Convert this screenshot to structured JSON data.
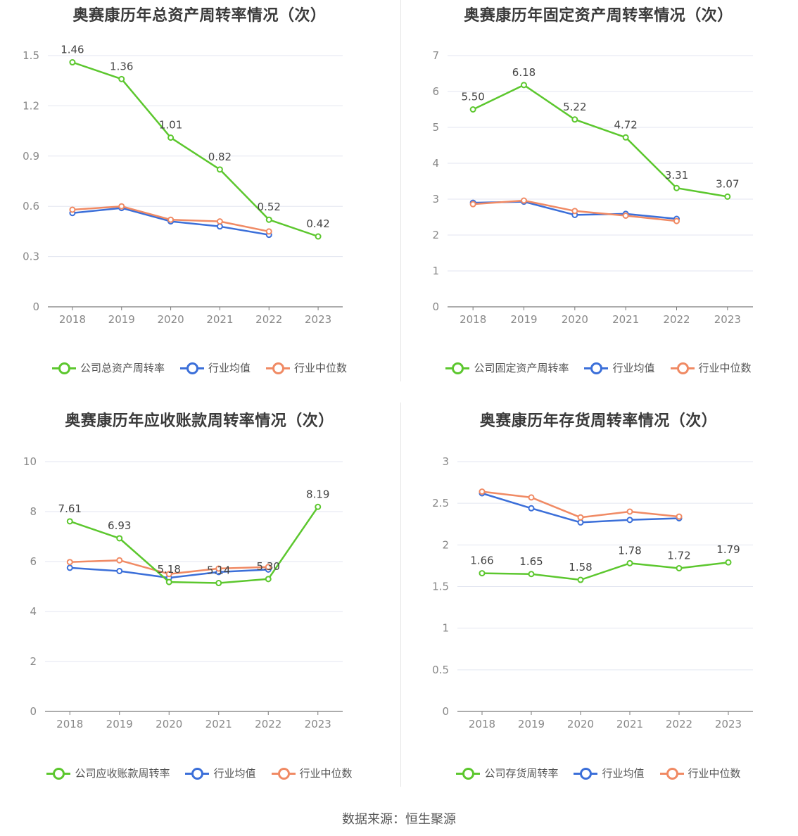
{
  "colors": {
    "company": "#5cc72e",
    "average": "#3b6fd9",
    "median": "#f08a64",
    "grid": "#e3e6f0",
    "axis": "#7a7a7a"
  },
  "source": "数据来源：恒生聚源",
  "chart_data": [
    {
      "type": "line",
      "title": "奥赛康历年总资产周转率情况（次）",
      "categories": [
        "2018",
        "2019",
        "2020",
        "2021",
        "2022",
        "2023"
      ],
      "ylim": [
        0,
        1.5
      ],
      "yticks": [
        "0",
        "0.3",
        "0.6",
        "0.9",
        "1.2",
        "1.5"
      ],
      "series": [
        {
          "name": "公司总资产周转率",
          "role": "company",
          "values": [
            1.46,
            1.36,
            1.01,
            0.82,
            0.52,
            0.42
          ],
          "labels": [
            "1.46",
            "1.36",
            "1.01",
            "0.82",
            "0.52",
            "0.42"
          ]
        },
        {
          "name": "行业均值",
          "role": "average",
          "values": [
            0.56,
            0.59,
            0.51,
            0.48,
            0.43,
            null
          ]
        },
        {
          "name": "行业中位数",
          "role": "median",
          "values": [
            0.58,
            0.6,
            0.52,
            0.51,
            0.45,
            null
          ]
        }
      ]
    },
    {
      "type": "line",
      "title": "奥赛康历年固定资产周转率情况（次）",
      "categories": [
        "2018",
        "2019",
        "2020",
        "2021",
        "2022",
        "2023"
      ],
      "ylim": [
        0,
        7
      ],
      "yticks": [
        "0",
        "1",
        "2",
        "3",
        "4",
        "5",
        "6",
        "7"
      ],
      "series": [
        {
          "name": "公司固定资产周转率",
          "role": "company",
          "values": [
            5.5,
            6.18,
            5.22,
            4.72,
            3.31,
            3.07
          ],
          "labels": [
            "5.50",
            "6.18",
            "5.22",
            "4.72",
            "3.31",
            "3.07"
          ]
        },
        {
          "name": "行业均值",
          "role": "average",
          "values": [
            2.9,
            2.93,
            2.56,
            2.59,
            2.45,
            null
          ]
        },
        {
          "name": "行业中位数",
          "role": "median",
          "values": [
            2.86,
            2.96,
            2.67,
            2.54,
            2.39,
            null
          ]
        }
      ]
    },
    {
      "type": "line",
      "title": "奥赛康历年应收账款周转率情况（次）",
      "categories": [
        "2018",
        "2019",
        "2020",
        "2021",
        "2022",
        "2023"
      ],
      "ylim": [
        0,
        10
      ],
      "yticks": [
        "0",
        "2",
        "4",
        "6",
        "8",
        "10"
      ],
      "series": [
        {
          "name": "公司应收账款周转率",
          "role": "company",
          "values": [
            7.61,
            6.93,
            5.18,
            5.14,
            5.3,
            8.19
          ],
          "labels": [
            "7.61",
            "6.93",
            "5.18",
            "5.14",
            "5.30",
            "8.19"
          ]
        },
        {
          "name": "行业均值",
          "role": "average",
          "values": [
            5.75,
            5.62,
            5.35,
            5.58,
            5.68,
            null
          ]
        },
        {
          "name": "行业中位数",
          "role": "median",
          "values": [
            5.98,
            6.05,
            5.5,
            5.72,
            5.78,
            null
          ]
        }
      ]
    },
    {
      "type": "line",
      "title": "奥赛康历年存货周转率情况（次）",
      "categories": [
        "2018",
        "2019",
        "2020",
        "2021",
        "2022",
        "2023"
      ],
      "ylim": [
        0,
        3
      ],
      "yticks": [
        "0",
        "0.5",
        "1",
        "1.5",
        "2",
        "2.5",
        "3"
      ],
      "series": [
        {
          "name": "公司存货周转率",
          "role": "company",
          "values": [
            1.66,
            1.65,
            1.58,
            1.78,
            1.72,
            1.79
          ],
          "labels": [
            "1.66",
            "1.65",
            "1.58",
            "1.78",
            "1.72",
            "1.79"
          ]
        },
        {
          "name": "行业均值",
          "role": "average",
          "values": [
            2.62,
            2.44,
            2.27,
            2.3,
            2.32,
            null
          ]
        },
        {
          "name": "行业中位数",
          "role": "median",
          "values": [
            2.64,
            2.57,
            2.33,
            2.4,
            2.34,
            null
          ]
        }
      ]
    }
  ]
}
